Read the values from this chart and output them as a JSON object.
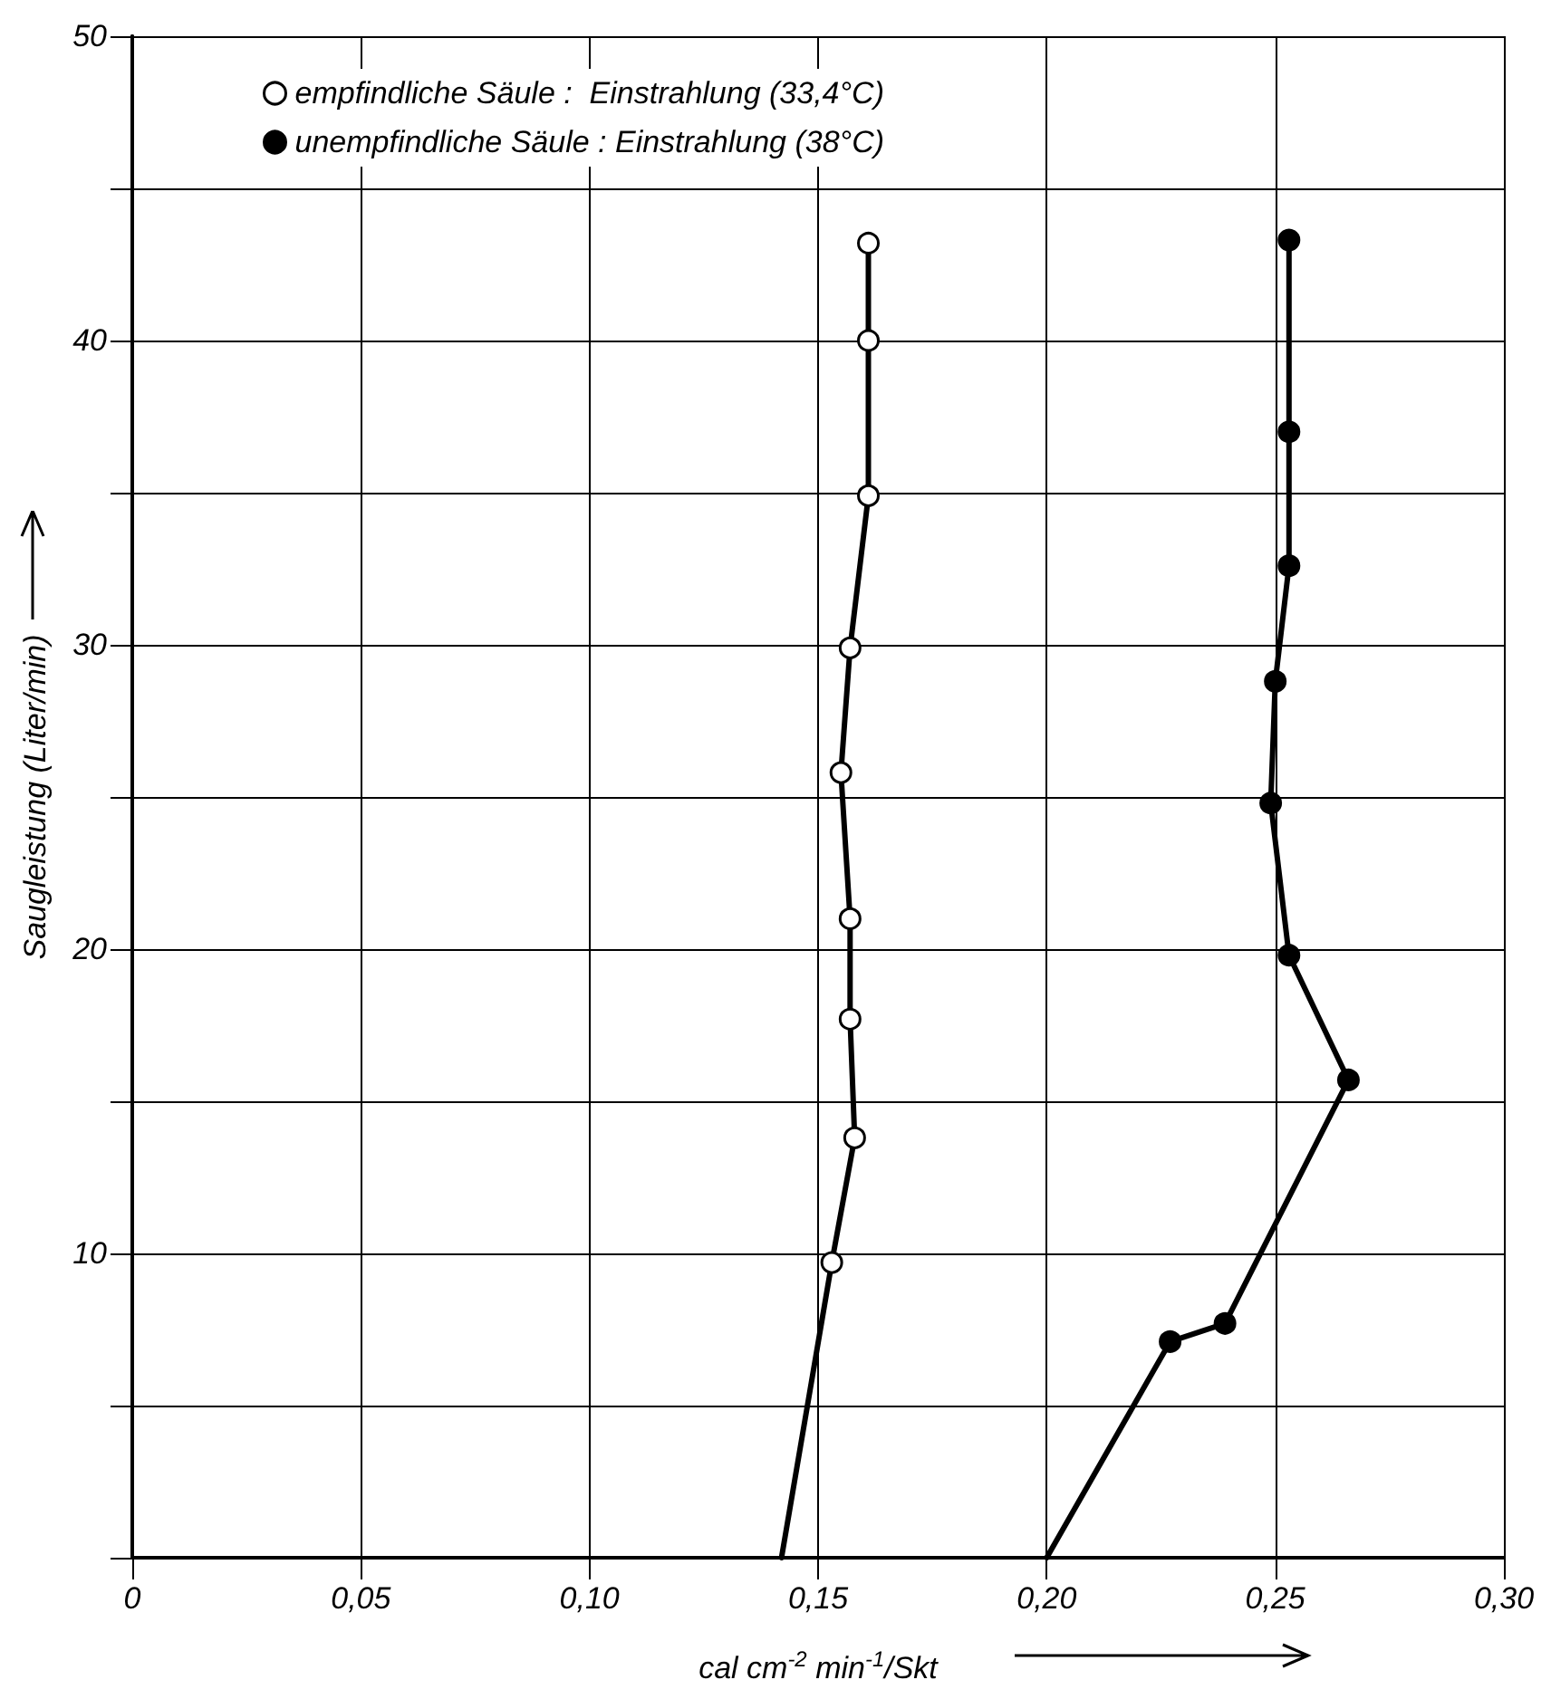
{
  "chart_data": {
    "type": "line",
    "xlabel": "cal cm$^{-2}$ min$^{-1}$/Skt",
    "ylabel": "Saugleistung (Liter/min)",
    "xlim": [
      0,
      0.3
    ],
    "xticks": [
      {
        "value": 0,
        "label": "0"
      },
      {
        "value": 0.05,
        "label": "0,05"
      },
      {
        "value": 0.1,
        "label": "0,10"
      },
      {
        "value": 0.15,
        "label": "0,15"
      },
      {
        "value": 0.2,
        "label": "0,20"
      },
      {
        "value": 0.25,
        "label": "0,25"
      },
      {
        "value": 0.3,
        "label": "0,30"
      }
    ],
    "ylim": [
      0,
      50
    ],
    "yticks": [
      {
        "value": 0,
        "label": null
      },
      {
        "value": 5,
        "label": null
      },
      10,
      {
        "value": 15,
        "label": null
      },
      20,
      {
        "value": 25,
        "label": null
      },
      30,
      {
        "value": 35,
        "label": null
      },
      40,
      {
        "value": 45,
        "label": null
      },
      50
    ],
    "grid": true,
    "legend": "top left",
    "line_style": "solid",
    "series": [
      {
        "name": "empfindliche Säule :  Einstrahlung (33,4°C)",
        "color": "#ffffff",
        "marker": "circle",
        "x": [
          0.153,
          0.158,
          0.157,
          0.157,
          0.155,
          0.157,
          0.161,
          0.161,
          0.161
        ],
        "values": [
          9.7,
          13.8,
          17.7,
          21.0,
          25.8,
          29.9,
          34.9,
          40.0,
          43.2
        ]
      },
      {
        "name": "unempfindliche Säule : Einstrahlung (38°C)",
        "color": "#000000",
        "marker": "circle",
        "x": [
          0.227,
          0.239,
          0.266,
          0.253,
          0.249,
          0.25,
          0.253,
          0.253,
          0.253
        ],
        "values": [
          7.1,
          7.7,
          15.7,
          19.8,
          24.8,
          28.8,
          32.6,
          37.0,
          43.3
        ]
      },
      {
        "color": "#000000",
        "marker": "none",
        "x": [
          0.142,
          0.153
        ],
        "values": [
          0,
          9.7
        ]
      },
      {
        "color": "#000000",
        "marker": "none",
        "x": [
          0.2,
          0.227
        ],
        "values": [
          0,
          7.1
        ]
      }
    ]
  }
}
